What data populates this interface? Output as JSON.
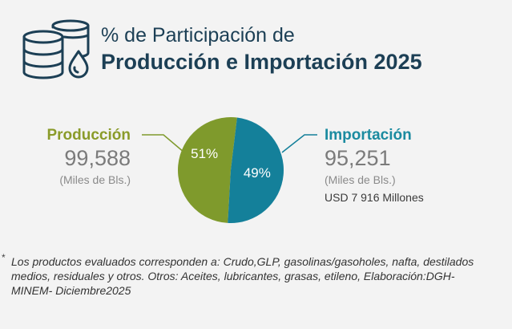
{
  "title": {
    "line1": "% de Participación de",
    "line2": "Producción e Importación 2025"
  },
  "produccion": {
    "label": "Producción",
    "value": "99,588",
    "units": "(Miles de Bls.)"
  },
  "importacion": {
    "label": "Importación",
    "value": "95,251",
    "units": "(Miles de Bls.)",
    "usd": "USD 7 916 Millones"
  },
  "footnote": {
    "marker": "*",
    "text": "Los productos evaluados corresponden a: Crudo,GLP, gasolinas/gasoholes, nafta, destilados medios, residuales y otros. Otros: Aceites, lubricantes, grasas, etileno, Elaboración:DGH-MINEM- Diciembre2025"
  },
  "colors": {
    "produccion": "#7f9a2c",
    "importacion": "#14809a",
    "title": "#1c3f55"
  },
  "icon": "oil-barrels-drop-icon",
  "chart_data": {
    "type": "pie",
    "categories": [
      "Producción",
      "Importación"
    ],
    "values": [
      51,
      49
    ],
    "labels": [
      "51%",
      "49%"
    ]
  }
}
